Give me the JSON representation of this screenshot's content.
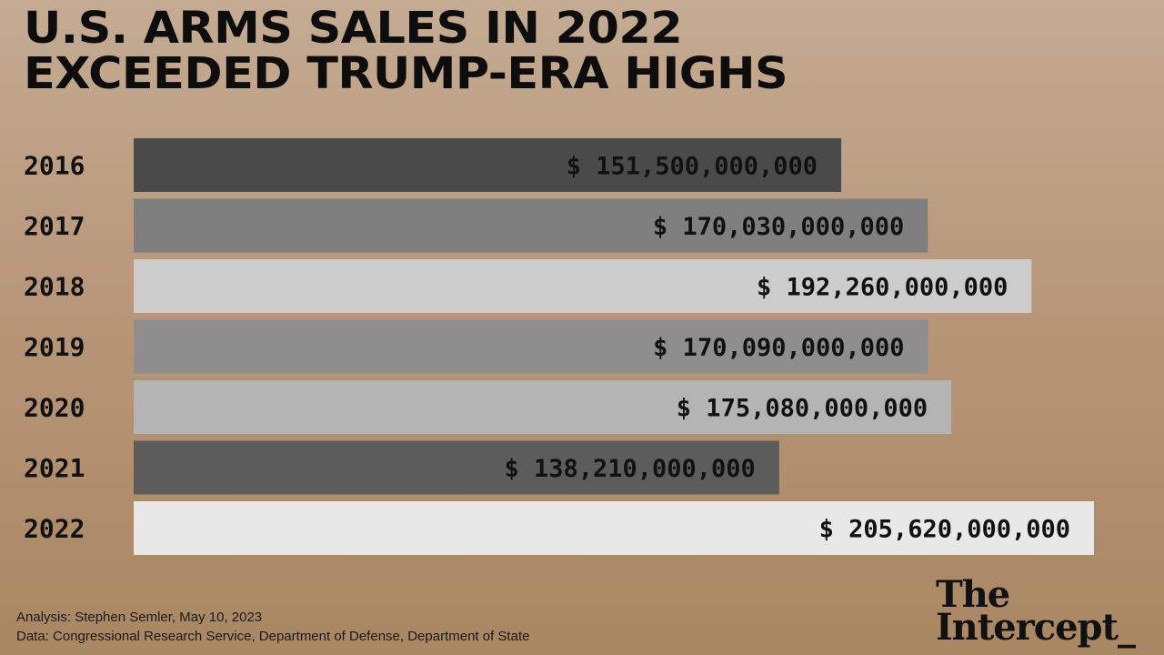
{
  "chart_data": {
    "type": "bar",
    "orientation": "horizontal",
    "title": "U.S. ARMS SALES IN 2022 EXCEEDED TRUMP-ERA HIGHS",
    "title_lines": [
      "U.S. ARMS SALES IN 2022",
      "EXCEEDED TRUMP-ERA HIGHS"
    ],
    "categories": [
      "2016",
      "2017",
      "2018",
      "2019",
      "2020",
      "2021",
      "2022"
    ],
    "values": [
      151500000000,
      170030000000,
      192260000000,
      170090000000,
      175080000000,
      138210000000,
      205620000000
    ],
    "data_labels": [
      "$ 151,500,000,000",
      "$ 170,030,000,000",
      "$ 192,260,000,000",
      "$ 170,090,000,000",
      "$ 175,080,000,000",
      "$ 138,210,000,000",
      "$ 205,620,000,000"
    ],
    "bar_colors": [
      "#4a4a4a",
      "#7f7f7f",
      "#cccccc",
      "#8e8e8e",
      "#b4b4b4",
      "#5c5c5c",
      "#e8e8e8"
    ],
    "xlim": [
      0,
      205620000000
    ],
    "grid": false,
    "legend": "none"
  },
  "footer": {
    "analysis": "Analysis: Stephen Semler, May 10, 2023",
    "data_source": "Data: Congressional Research Service, Department of Defense, Department of State"
  },
  "logo": {
    "line1": "The",
    "line2": "Intercept_"
  }
}
